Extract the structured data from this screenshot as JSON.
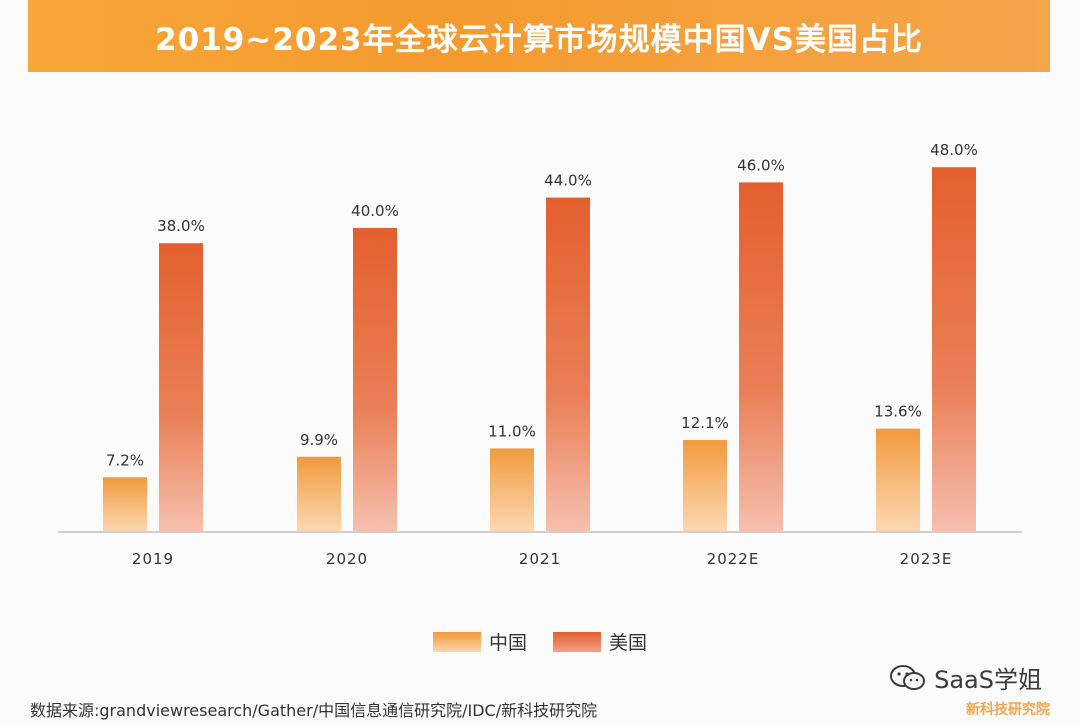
{
  "header": {
    "title": "2019~2023年全球云计算市场规模中国VS美国占比"
  },
  "chart_data": {
    "type": "bar",
    "title": "2019~2023年全球云计算市场规模中国VS美国占比",
    "categories": [
      "2019",
      "2020",
      "2021",
      "2022E",
      "2023E"
    ],
    "series": [
      {
        "name": "中国",
        "values": [
          7.2,
          9.9,
          11.0,
          12.1,
          13.6
        ],
        "labels": [
          "7.2%",
          "9.9%",
          "11.0%",
          "12.1%",
          "13.6%"
        ],
        "color": "#f29a3d"
      },
      {
        "name": "美国",
        "values": [
          38.0,
          40.0,
          44.0,
          46.0,
          48.0
        ],
        "labels": [
          "38.0%",
          "40.0%",
          "44.0%",
          "46.0%",
          "48.0%"
        ],
        "color": "#e35f2d"
      }
    ],
    "ylim": [
      0,
      100
    ],
    "grid": false,
    "legend_position": "bottom"
  },
  "legend": {
    "items": [
      {
        "label": "中国",
        "color": "#f29a3d"
      },
      {
        "label": "美国",
        "color": "#e35f2d"
      }
    ]
  },
  "footer": {
    "source": "数据来源:grandviewresearch/Gather/中国信息通信研究院/IDC/新科技研究院",
    "watermark": "SaaS学姐",
    "brand": "新科技研究院"
  },
  "icons": {
    "wechat": "wechat-icon"
  }
}
